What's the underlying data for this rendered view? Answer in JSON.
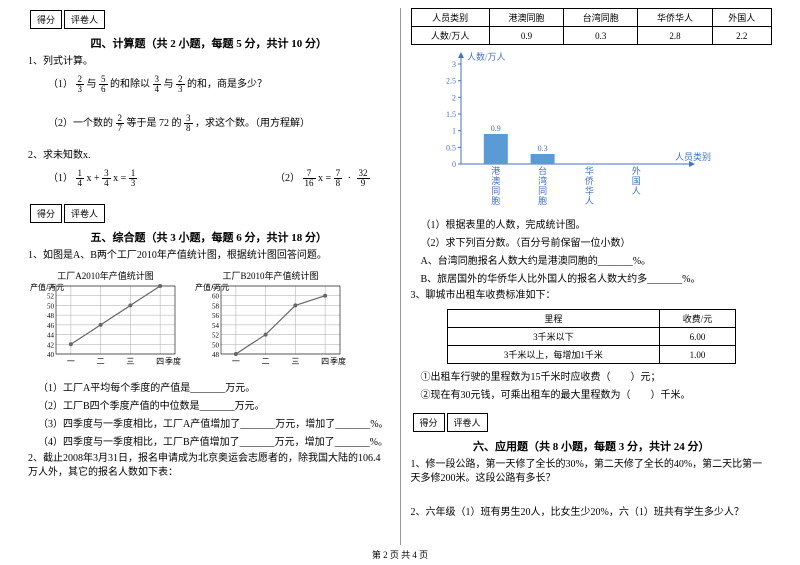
{
  "scoreBox": {
    "left": "得分",
    "right": "评卷人"
  },
  "section4": {
    "title": "四、计算题（共 2 小题，每题 5 分，共计 10 分）",
    "q1": {
      "intro": "1、列式计算。",
      "part1_pre": "（1）",
      "part1_post": "的和除以",
      "part1_mid": "与",
      "part1_end": "的和，商是多少？",
      "f1n": "2",
      "f1d": "3",
      "f2n": "5",
      "f2d": "6",
      "f3n": "3",
      "f3d": "4",
      "f4n": "2",
      "f4d": "3",
      "part2_pre": "（2）一个数的",
      "part2_mid": "等于是 72 的",
      "part2_end": "，求这个数。（用方程解）",
      "f5n": "2",
      "f5d": "7",
      "f6n": "3",
      "f6d": "8"
    },
    "q2": {
      "intro": "2、求未知数x.",
      "e1_pre": "（1）",
      "e1_f1n": "1",
      "e1_f1d": "4",
      "e1_mid": " x + ",
      "e1_f2n": "3",
      "e1_f2d": "4",
      "e1_post": " x = ",
      "e1_f3n": "1",
      "e1_f3d": "3",
      "e2_pre": "（2）",
      "e2_f1n": "7",
      "e2_f1d": "16",
      "e2_mid": " x = ",
      "e2_f2n": "7",
      "e2_f2d": "8",
      "e2_f3n": "32",
      "e2_f3d": "9"
    }
  },
  "section5": {
    "title": "五、综合题（共 3 小题，每题 6 分，共计 18 分）",
    "q1": {
      "text": "1、如图是A、B两个工厂2010年产值统计图，根据统计图回答问题。",
      "chartA": {
        "title": "工厂A2010年产值统计图",
        "ylabel": "产值/万元",
        "xlabel": "季度",
        "yticks": [
          40,
          42,
          44,
          46,
          48,
          50,
          52,
          54
        ],
        "xlabels": [
          "一",
          "二",
          "三",
          "四"
        ],
        "values": [
          42,
          46,
          50,
          54
        ],
        "color": "#666"
      },
      "chartB": {
        "title": "工厂B2010年产值统计图",
        "ylabel": "产值/万元",
        "xlabel": "季度",
        "yticks": [
          48,
          50,
          52,
          54,
          56,
          58,
          60,
          62
        ],
        "xlabels": [
          "一",
          "二",
          "三",
          "四"
        ],
        "values": [
          48,
          52,
          58,
          60
        ],
        "color": "#666"
      },
      "sub1": "（1）工厂A平均每个季度的产值是_______万元。",
      "sub2": "（2）工厂B四个季度产值的中位数是_______万元。",
      "sub3": "（3）四季度与一季度相比，工厂A产值增加了_______万元，增加了_______%。",
      "sub4": "（4）四季度与一季度相比，工厂B产值增加了_______万元，增加了_______%。"
    },
    "q2": {
      "text": "2、截止2008年3月31日，报名申请成为北京奥运会志愿者的，除我国大陆的106.4万人外，其它的报名人数如下表："
    }
  },
  "rightTable": {
    "headers": [
      "人员类别",
      "港澳同胞",
      "台湾同胞",
      "华侨华人",
      "外国人"
    ],
    "row": [
      "人数/万人",
      "0.9",
      "0.3",
      "2.8",
      "2.2"
    ]
  },
  "barChart": {
    "ylabel": "人数/万人",
    "xlabel": "人员类别",
    "yticks": [
      "0",
      "0.5",
      "1",
      "1.5",
      "2",
      "2.5",
      "3"
    ],
    "bars": [
      {
        "label": "港澳同胞",
        "value": 0.9,
        "show": "0.9"
      },
      {
        "label": "台湾同胞",
        "value": 0.3,
        "show": "0.3"
      },
      {
        "label": "华侨华人",
        "value": 0,
        "show": ""
      },
      {
        "label": "外国人",
        "value": 0,
        "show": ""
      }
    ],
    "barColor": "#5b9bd5",
    "maxY": 3
  },
  "rightQ": {
    "sub1": "（1）根据表里的人数，完成统计图。",
    "sub2": "（2）求下列百分数。（百分号前保留一位小数）",
    "subA": "A、台湾同胞报名人数大约是港澳同胞的_______%。",
    "subB": "B、旅居国外的华侨华人比外国人的报名人数大约多_______%。",
    "q3": "3、聊城市出租车收费标准如下：",
    "fare": {
      "h1": "里程",
      "h2": "收费/元",
      "r1c1": "3千米以下",
      "r1c2": "6.00",
      "r2c1": "3千米以上，每增加1千米",
      "r2c2": "1.00"
    },
    "f1": "①出租车行驶的里程数为15千米时应收费（　　）元；",
    "f2": "②现在有30元钱，可乘出租车的最大里程数为（　　）千米。"
  },
  "section6": {
    "title": "六、应用题（共 8 小题，每题 3 分，共计 24 分）",
    "q1": "1、修一段公路，第一天修了全长的30%，第二天修了全长的40%，第二天比第一天多修200米。这段公路有多长？",
    "q2": "2、六年级（1）班有男生20人，比女生少20%，六（1）班共有学生多少人？"
  },
  "footer": "第 2 页 共 4 页"
}
